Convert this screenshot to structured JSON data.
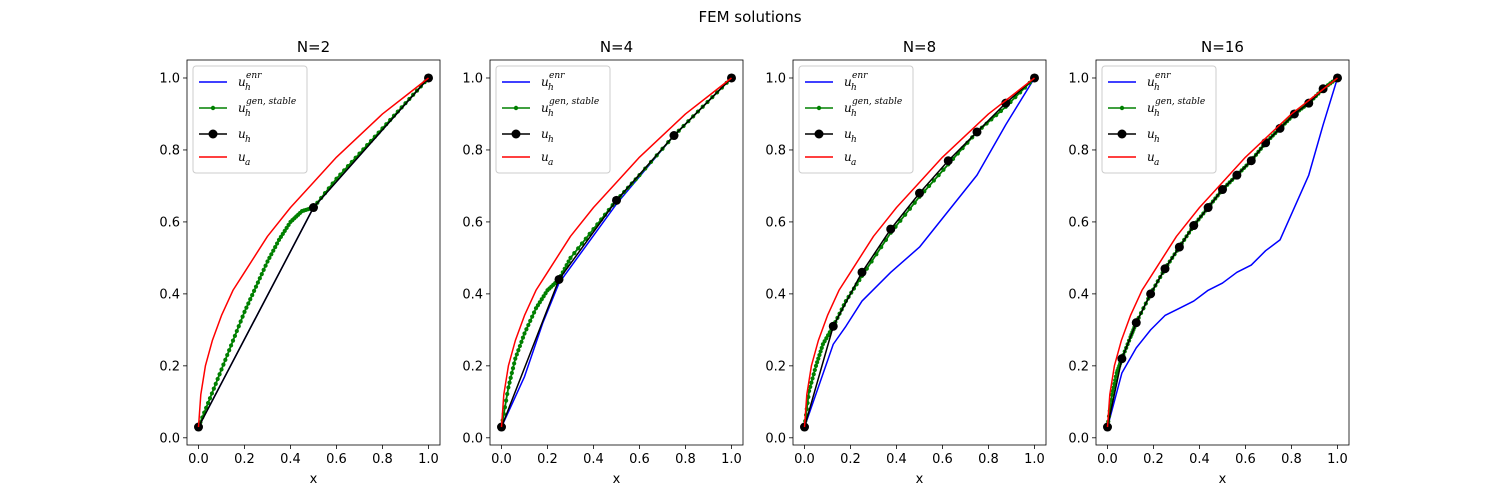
{
  "figure": {
    "suptitle": "FEM solutions"
  },
  "legend_entries": [
    {
      "key": "enr",
      "base": "u",
      "sub": "h",
      "sup": "enr",
      "color": "#0000ff",
      "marker": "none"
    },
    {
      "key": "gen",
      "base": "u",
      "sub": "h",
      "sup": "gen, stable",
      "color": "#008000",
      "marker": "small"
    },
    {
      "key": "uh",
      "base": "u",
      "sub": "h",
      "sup": "",
      "color": "#000000",
      "marker": "large"
    },
    {
      "key": "ua",
      "base": "u",
      "sub": "a",
      "sup": "",
      "color": "#ff0000",
      "marker": "none"
    }
  ],
  "chart_data": [
    {
      "type": "line",
      "title": "N=2",
      "xlabel": "x",
      "ylabel": "",
      "xlim": [
        -0.05,
        1.05
      ],
      "ylim": [
        -0.02,
        1.05
      ],
      "xticks": [
        0.0,
        0.2,
        0.4,
        0.6,
        0.8,
        1.0
      ],
      "yticks": [
        0.0,
        0.2,
        0.4,
        0.6,
        0.8,
        1.0
      ],
      "legend_position": "upper-left",
      "series": [
        {
          "name": "enr",
          "x": [
            0.0,
            0.5,
            1.0
          ],
          "y": [
            0.03,
            0.64,
            1.0
          ]
        },
        {
          "name": "gen",
          "x": [
            0.0,
            0.05,
            0.1,
            0.15,
            0.2,
            0.25,
            0.3,
            0.35,
            0.4,
            0.45,
            0.5,
            0.6,
            0.7,
            0.8,
            0.9,
            1.0
          ],
          "y": [
            0.03,
            0.11,
            0.19,
            0.27,
            0.35,
            0.42,
            0.49,
            0.55,
            0.6,
            0.63,
            0.64,
            0.72,
            0.79,
            0.86,
            0.93,
            1.0
          ]
        },
        {
          "name": "uh",
          "x": [
            0.0,
            0.5,
            1.0
          ],
          "y": [
            0.03,
            0.64,
            1.0
          ]
        },
        {
          "name": "ua",
          "x": [
            0.0,
            0.01,
            0.03,
            0.06,
            0.1,
            0.15,
            0.2,
            0.3,
            0.4,
            0.5,
            0.6,
            0.7,
            0.8,
            0.9,
            1.0
          ],
          "y": [
            0.03,
            0.12,
            0.2,
            0.27,
            0.34,
            0.41,
            0.46,
            0.56,
            0.64,
            0.71,
            0.78,
            0.84,
            0.9,
            0.95,
            1.0
          ]
        }
      ]
    },
    {
      "type": "line",
      "title": "N=4",
      "xlabel": "x",
      "ylabel": "",
      "xlim": [
        -0.05,
        1.05
      ],
      "ylim": [
        -0.02,
        1.05
      ],
      "xticks": [
        0.0,
        0.2,
        0.4,
        0.6,
        0.8,
        1.0
      ],
      "yticks": [
        0.0,
        0.2,
        0.4,
        0.6,
        0.8,
        1.0
      ],
      "legend_position": "upper-left",
      "series": [
        {
          "name": "enr",
          "x": [
            0.0,
            0.1,
            0.18,
            0.25,
            0.5,
            0.75,
            1.0
          ],
          "y": [
            0.03,
            0.17,
            0.32,
            0.43,
            0.65,
            0.84,
            1.0
          ]
        },
        {
          "name": "gen",
          "x": [
            0.0,
            0.03,
            0.06,
            0.1,
            0.15,
            0.2,
            0.25,
            0.3,
            0.4,
            0.5,
            0.6,
            0.75,
            0.875,
            1.0
          ],
          "y": [
            0.03,
            0.14,
            0.22,
            0.29,
            0.36,
            0.41,
            0.44,
            0.5,
            0.58,
            0.66,
            0.73,
            0.84,
            0.92,
            1.0
          ]
        },
        {
          "name": "uh",
          "x": [
            0.0,
            0.25,
            0.5,
            0.75,
            1.0
          ],
          "y": [
            0.03,
            0.44,
            0.66,
            0.84,
            1.0
          ]
        },
        {
          "name": "ua",
          "x": [
            0.0,
            0.01,
            0.03,
            0.06,
            0.1,
            0.15,
            0.2,
            0.3,
            0.4,
            0.5,
            0.6,
            0.7,
            0.8,
            0.9,
            1.0
          ],
          "y": [
            0.03,
            0.12,
            0.2,
            0.27,
            0.34,
            0.41,
            0.46,
            0.56,
            0.64,
            0.71,
            0.78,
            0.84,
            0.9,
            0.95,
            1.0
          ]
        }
      ]
    },
    {
      "type": "line",
      "title": "N=8",
      "xlabel": "x",
      "ylabel": "",
      "xlim": [
        -0.05,
        1.05
      ],
      "ylim": [
        -0.02,
        1.05
      ],
      "xticks": [
        0.0,
        0.2,
        0.4,
        0.6,
        0.8,
        1.0
      ],
      "yticks": [
        0.0,
        0.2,
        0.4,
        0.6,
        0.8,
        1.0
      ],
      "legend_position": "upper-left",
      "series": [
        {
          "name": "enr",
          "x": [
            0.0,
            0.125,
            0.18,
            0.25,
            0.375,
            0.5,
            0.625,
            0.75,
            0.875,
            1.0
          ],
          "y": [
            0.03,
            0.26,
            0.31,
            0.38,
            0.46,
            0.53,
            0.63,
            0.73,
            0.87,
            1.0
          ]
        },
        {
          "name": "gen",
          "x": [
            0.0,
            0.02,
            0.05,
            0.08,
            0.125,
            0.18,
            0.25,
            0.375,
            0.5,
            0.625,
            0.75,
            0.875,
            1.0
          ],
          "y": [
            0.03,
            0.13,
            0.2,
            0.26,
            0.31,
            0.38,
            0.45,
            0.57,
            0.67,
            0.76,
            0.85,
            0.92,
            1.0
          ]
        },
        {
          "name": "uh",
          "x": [
            0.0,
            0.125,
            0.25,
            0.375,
            0.5,
            0.625,
            0.75,
            0.875,
            1.0
          ],
          "y": [
            0.03,
            0.31,
            0.46,
            0.58,
            0.68,
            0.77,
            0.85,
            0.93,
            1.0
          ]
        },
        {
          "name": "ua",
          "x": [
            0.0,
            0.01,
            0.03,
            0.06,
            0.1,
            0.15,
            0.2,
            0.3,
            0.4,
            0.5,
            0.6,
            0.7,
            0.8,
            0.9,
            1.0
          ],
          "y": [
            0.03,
            0.12,
            0.2,
            0.27,
            0.34,
            0.41,
            0.46,
            0.56,
            0.64,
            0.71,
            0.78,
            0.84,
            0.9,
            0.95,
            1.0
          ]
        }
      ]
    },
    {
      "type": "line",
      "title": "N=16",
      "xlabel": "x",
      "ylabel": "",
      "xlim": [
        -0.05,
        1.05
      ],
      "ylim": [
        -0.02,
        1.05
      ],
      "xticks": [
        0.0,
        0.2,
        0.4,
        0.6,
        0.8,
        1.0
      ],
      "yticks": [
        0.0,
        0.2,
        0.4,
        0.6,
        0.8,
        1.0
      ],
      "legend_position": "upper-left",
      "series": [
        {
          "name": "enr",
          "x": [
            0.0,
            0.0625,
            0.125,
            0.1875,
            0.25,
            0.3125,
            0.375,
            0.4375,
            0.5,
            0.5625,
            0.625,
            0.6875,
            0.75,
            0.8125,
            0.875,
            0.9375,
            1.0
          ],
          "y": [
            0.03,
            0.18,
            0.25,
            0.3,
            0.34,
            0.36,
            0.38,
            0.41,
            0.43,
            0.46,
            0.48,
            0.52,
            0.55,
            0.64,
            0.73,
            0.87,
            1.0
          ]
        },
        {
          "name": "gen",
          "x": [
            0.0,
            0.02,
            0.04,
            0.0625,
            0.1,
            0.125,
            0.1875,
            0.25,
            0.3125,
            0.375,
            0.4375,
            0.5,
            0.5625,
            0.625,
            0.6875,
            0.75,
            0.8125,
            0.875,
            0.9375,
            1.0
          ],
          "y": [
            0.03,
            0.12,
            0.18,
            0.22,
            0.28,
            0.32,
            0.4,
            0.47,
            0.53,
            0.59,
            0.64,
            0.69,
            0.73,
            0.77,
            0.82,
            0.86,
            0.9,
            0.93,
            0.97,
            1.0
          ]
        },
        {
          "name": "uh",
          "x": [
            0.0,
            0.0625,
            0.125,
            0.1875,
            0.25,
            0.3125,
            0.375,
            0.4375,
            0.5,
            0.5625,
            0.625,
            0.6875,
            0.75,
            0.8125,
            0.875,
            0.9375,
            1.0
          ],
          "y": [
            0.03,
            0.22,
            0.32,
            0.4,
            0.47,
            0.53,
            0.59,
            0.64,
            0.69,
            0.73,
            0.77,
            0.82,
            0.86,
            0.9,
            0.93,
            0.97,
            1.0
          ]
        },
        {
          "name": "ua",
          "x": [
            0.0,
            0.01,
            0.03,
            0.06,
            0.1,
            0.15,
            0.2,
            0.3,
            0.4,
            0.5,
            0.6,
            0.7,
            0.8,
            0.9,
            1.0
          ],
          "y": [
            0.03,
            0.12,
            0.2,
            0.27,
            0.34,
            0.41,
            0.46,
            0.56,
            0.64,
            0.71,
            0.78,
            0.84,
            0.9,
            0.95,
            1.0
          ]
        }
      ]
    }
  ]
}
